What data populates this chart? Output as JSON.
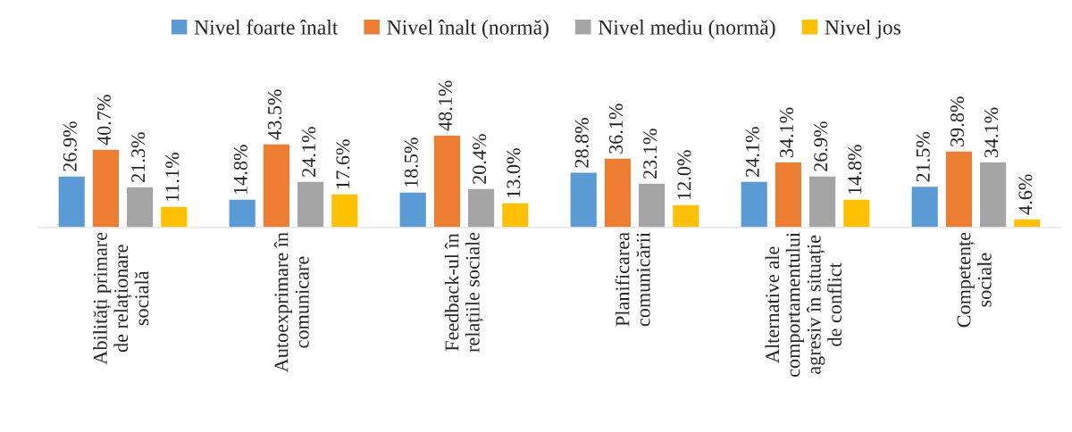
{
  "chart_data": {
    "type": "bar",
    "categories": [
      "Abilități primare\nde relaționare\nsocială",
      "Autoexprimare în\ncomunicare",
      "Feedback-ul în\nrelațiile sociale",
      "Planificarea\ncomunicării",
      "Alternative ale\ncomportamentului\nagresiv în situație\nde conflict",
      "Competențe\nsociale"
    ],
    "series": [
      {
        "name": "Nivel foarte înalt",
        "color": "#5b9bd5",
        "values": [
          26.9,
          14.8,
          18.5,
          28.8,
          24.1,
          21.5
        ],
        "value_labels": [
          "26.9%",
          "14.8%",
          "18.5%",
          "28.8%",
          "24.1%",
          "21.5%"
        ]
      },
      {
        "name": "Nivel înalt (normă)",
        "color": "#ed7d31",
        "values": [
          40.7,
          43.5,
          48.1,
          36.1,
          34.1,
          39.8
        ],
        "value_labels": [
          "40.7%",
          "43.5%",
          "48.1%",
          "36.1%",
          "34.1%",
          "39.8%"
        ]
      },
      {
        "name": "Nivel mediu (normă)",
        "color": "#a5a5a5",
        "values": [
          21.3,
          24.1,
          20.4,
          23.1,
          26.9,
          34.1
        ],
        "value_labels": [
          "21.3%",
          "24.1%",
          "20.4%",
          "23.1%",
          "26.9%",
          "34.1%"
        ]
      },
      {
        "name": "Nivel jos",
        "color": "#ffc000",
        "values": [
          11.1,
          17.6,
          13.0,
          12.0,
          14.8,
          4.6
        ],
        "value_labels": [
          "11.1%",
          "17.6%",
          "13.0%",
          "12.0%",
          "14.8%",
          "4.6%"
        ]
      }
    ],
    "legend": "top",
    "grid": false,
    "tick_labels": "x"
  }
}
